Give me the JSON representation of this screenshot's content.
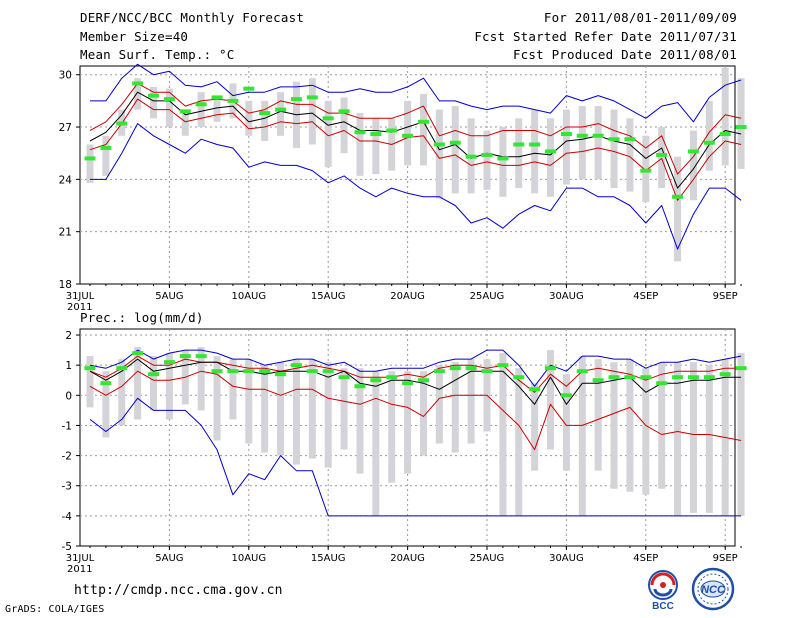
{
  "header": {
    "title": "DERF/NCC/BCC Monthly Forecast",
    "member_size": "Member Size=40",
    "variable": "Mean Surf. Temp.: °C",
    "period": "For 2011/08/01-2011/09/09",
    "started": "Fcst Started Refer Date 2011/07/31",
    "produced": "Fcst Produced Date 2011/08/01"
  },
  "footer": {
    "url": "http://cmdp.ncc.cma.gov.cn",
    "credit": "GrADS: COLA/IGES",
    "logo_left_text": "BCC",
    "logo_right_text": "NCC"
  },
  "chart_data": [
    {
      "type": "line",
      "title": "Mean Surf. Temp.: °C",
      "ylim": [
        18,
        30.5
      ],
      "yticks": [
        18,
        21,
        24,
        27,
        30
      ],
      "x_start_label": "31JUL",
      "x_year_label": "2011",
      "x_tick_labels": [
        "5AUG",
        "10AUG",
        "15AUG",
        "20AUG",
        "25AUG",
        "30AUG",
        "4SEP",
        "9SEP"
      ],
      "series": [
        {
          "name": "ensemble max",
          "color": "#0000cc",
          "values": [
            28.5,
            28.5,
            29.8,
            30.6,
            30.0,
            30.2,
            29.4,
            29.3,
            29.6,
            28.8,
            29.0,
            29.0,
            29.3,
            29.3,
            29.4,
            29.0,
            29.0,
            29.2,
            29.0,
            29.0,
            29.3,
            29.8,
            28.5,
            28.5,
            28.2,
            28.0,
            28.2,
            28.2,
            28.0,
            27.8,
            28.8,
            28.5,
            28.8,
            28.5,
            28.0,
            27.5,
            28.2,
            28.4,
            27.3,
            28.7,
            29.4,
            29.7
          ]
        },
        {
          "name": "upper spread",
          "color": "#cc0000",
          "values": [
            26.8,
            27.3,
            28.3,
            29.5,
            29.0,
            29.0,
            28.2,
            28.5,
            28.6,
            28.5,
            27.8,
            28.0,
            28.5,
            28.3,
            28.3,
            27.8,
            27.8,
            27.5,
            27.5,
            27.5,
            27.8,
            28.2,
            26.5,
            26.8,
            26.5,
            26.5,
            26.8,
            26.8,
            26.8,
            26.5,
            27.0,
            27.0,
            27.2,
            26.8,
            26.5,
            25.8,
            26.5,
            24.3,
            25.3,
            26.7,
            27.7,
            27.5
          ]
        },
        {
          "name": "ensemble mean",
          "color": "#000000",
          "values": [
            26.2,
            26.7,
            27.7,
            29.0,
            28.5,
            28.5,
            27.7,
            27.9,
            28.1,
            28.2,
            27.3,
            27.5,
            27.9,
            27.7,
            27.8,
            27.1,
            27.3,
            26.8,
            26.8,
            26.7,
            27.0,
            27.3,
            25.7,
            26.0,
            25.2,
            25.5,
            25.3,
            25.3,
            25.5,
            25.4,
            26.2,
            26.3,
            26.5,
            26.2,
            26.0,
            25.2,
            25.8,
            23.5,
            24.6,
            26.0,
            26.8,
            26.6
          ]
        },
        {
          "name": "lower spread",
          "color": "#cc0000",
          "values": [
            25.7,
            26.0,
            27.2,
            28.6,
            28.0,
            28.0,
            27.3,
            27.5,
            27.7,
            27.8,
            26.9,
            27.0,
            27.3,
            27.2,
            27.3,
            26.5,
            26.8,
            26.2,
            26.2,
            26.0,
            26.4,
            26.5,
            25.2,
            25.4,
            24.8,
            25.0,
            24.8,
            24.8,
            25.0,
            24.8,
            25.5,
            25.6,
            25.8,
            25.6,
            25.3,
            24.5,
            25.2,
            22.8,
            24.0,
            25.3,
            26.2,
            26.0
          ]
        },
        {
          "name": "ensemble min",
          "color": "#0000cc",
          "values": [
            24.0,
            24.0,
            25.5,
            27.2,
            26.5,
            26.0,
            25.5,
            26.3,
            26.0,
            25.8,
            24.7,
            25.0,
            24.8,
            24.8,
            24.5,
            23.8,
            24.2,
            23.5,
            23.0,
            23.5,
            23.2,
            23.0,
            23.0,
            22.5,
            21.5,
            21.8,
            21.2,
            22.0,
            22.5,
            22.2,
            23.5,
            23.5,
            23.0,
            23.0,
            22.5,
            21.5,
            22.5,
            20.0,
            22.0,
            23.5,
            23.5,
            22.8
          ]
        }
      ],
      "bars": [
        {
          "low": 23.8,
          "high": 26.0
        },
        {
          "low": 24.2,
          "high": 26.5
        },
        {
          "low": 26.5,
          "high": 28.0
        },
        {
          "low": 28.0,
          "high": 29.8
        },
        {
          "low": 27.5,
          "high": 29.3
        },
        {
          "low": 27.0,
          "high": 29.2
        },
        {
          "low": 26.5,
          "high": 28.0
        },
        {
          "low": 27.0,
          "high": 29.0
        },
        {
          "low": 27.3,
          "high": 28.8
        },
        {
          "low": 27.5,
          "high": 29.5
        },
        {
          "low": 26.5,
          "high": 28.5
        },
        {
          "low": 26.2,
          "high": 28.5
        },
        {
          "low": 26.5,
          "high": 29.0
        },
        {
          "low": 25.8,
          "high": 29.6
        },
        {
          "low": 26.0,
          "high": 29.8
        },
        {
          "low": 24.7,
          "high": 28.5
        },
        {
          "low": 25.5,
          "high": 28.7
        },
        {
          "low": 24.2,
          "high": 27.8
        },
        {
          "low": 24.3,
          "high": 27.5
        },
        {
          "low": 24.5,
          "high": 27.5
        },
        {
          "low": 24.8,
          "high": 28.5
        },
        {
          "low": 24.8,
          "high": 28.9
        },
        {
          "low": 22.9,
          "high": 28.0
        },
        {
          "low": 23.2,
          "high": 28.2
        },
        {
          "low": 23.2,
          "high": 27.5
        },
        {
          "low": 23.4,
          "high": 26.8
        },
        {
          "low": 23.0,
          "high": 27.0
        },
        {
          "low": 23.5,
          "high": 27.5
        },
        {
          "low": 23.2,
          "high": 28.0
        },
        {
          "low": 23.0,
          "high": 27.5
        },
        {
          "low": 23.7,
          "high": 28.0
        },
        {
          "low": 24.0,
          "high": 28.2
        },
        {
          "low": 24.0,
          "high": 28.2
        },
        {
          "low": 23.5,
          "high": 28.0
        },
        {
          "low": 23.3,
          "high": 27.5
        },
        {
          "low": 22.7,
          "high": 26.5
        },
        {
          "low": 23.5,
          "high": 27.0
        },
        {
          "low": 19.3,
          "high": 25.3
        },
        {
          "low": 22.8,
          "high": 26.8
        },
        {
          "low": 24.5,
          "high": 28.5
        },
        {
          "low": 24.8,
          "high": 30.4
        },
        {
          "low": 24.6,
          "high": 29.8
        }
      ],
      "green_marks": [
        25.2,
        25.8,
        27.2,
        29.5,
        28.8,
        28.6,
        27.9,
        28.3,
        28.7,
        28.5,
        29.2,
        27.8,
        28.0,
        28.6,
        28.7,
        27.5,
        27.9,
        26.7,
        26.6,
        26.8,
        26.5,
        27.3,
        26.0,
        26.1,
        25.3,
        25.4,
        25.2,
        26.0,
        26.0,
        25.6,
        26.6,
        26.5,
        26.5,
        26.3,
        26.3,
        24.5,
        25.4,
        23.0,
        25.6,
        26.1,
        26.6,
        27.0
      ]
    },
    {
      "type": "line",
      "title": "Prec.: log(mm/d)",
      "ylim": [
        -5,
        2.2
      ],
      "yticks": [
        -5,
        -4,
        -3,
        -2,
        -1,
        0,
        1,
        2
      ],
      "x_start_label": "31JUL",
      "x_year_label": "2011",
      "x_tick_labels": [
        "5AUG",
        "10AUG",
        "15AUG",
        "20AUG",
        "25AUG",
        "30AUG",
        "4SEP",
        "9SEP"
      ],
      "series": [
        {
          "name": "ensemble max",
          "color": "#0000cc",
          "values": [
            1.0,
            0.9,
            1.1,
            1.5,
            1.2,
            1.4,
            1.5,
            1.5,
            1.4,
            1.2,
            1.2,
            1.0,
            1.1,
            1.2,
            1.2,
            1.0,
            1.1,
            0.8,
            0.8,
            0.9,
            0.9,
            0.9,
            1.1,
            1.2,
            1.2,
            1.5,
            1.5,
            1.0,
            0.3,
            1.0,
            0.8,
            1.3,
            1.3,
            1.2,
            1.2,
            0.9,
            1.1,
            1.1,
            1.2,
            1.1,
            1.2,
            1.3
          ]
        },
        {
          "name": "upper spread",
          "color": "#cc0000",
          "values": [
            0.8,
            0.6,
            0.9,
            1.3,
            1.0,
            1.0,
            1.2,
            1.1,
            1.1,
            1.0,
            0.9,
            0.9,
            0.8,
            0.9,
            1.0,
            0.9,
            0.8,
            0.6,
            0.6,
            0.6,
            0.7,
            0.6,
            0.9,
            1.0,
            1.0,
            0.9,
            1.0,
            0.5,
            0.1,
            0.7,
            0.3,
            0.8,
            0.9,
            0.8,
            0.7,
            0.5,
            0.7,
            0.8,
            0.8,
            0.8,
            0.9,
            0.9
          ]
        },
        {
          "name": "ensemble mean",
          "color": "#000000",
          "values": [
            0.8,
            0.5,
            0.8,
            1.2,
            0.8,
            0.9,
            1.0,
            1.1,
            1.1,
            0.8,
            0.8,
            0.7,
            0.8,
            0.8,
            0.8,
            0.6,
            0.8,
            0.4,
            0.3,
            0.5,
            0.5,
            0.4,
            0.2,
            0.5,
            0.8,
            0.8,
            0.8,
            0.3,
            -0.3,
            0.6,
            -0.3,
            0.4,
            0.4,
            0.5,
            0.6,
            0.1,
            0.4,
            0.4,
            0.5,
            0.5,
            0.6,
            0.6
          ]
        },
        {
          "name": "lower spread",
          "color": "#cc0000",
          "values": [
            0.3,
            0.0,
            0.3,
            0.8,
            0.5,
            0.5,
            0.6,
            0.8,
            0.7,
            0.3,
            0.2,
            0.2,
            0.0,
            0.2,
            0.2,
            -0.1,
            -0.2,
            -0.3,
            -0.1,
            -0.3,
            -0.4,
            -0.7,
            -0.1,
            0.0,
            0.0,
            0.0,
            -0.5,
            -1.0,
            -1.8,
            -0.3,
            -1.0,
            -1.0,
            -0.8,
            -0.6,
            -0.4,
            -1.0,
            -1.3,
            -1.2,
            -1.3,
            -1.3,
            -1.4,
            -1.5
          ]
        },
        {
          "name": "ensemble min",
          "color": "#0000cc",
          "values": [
            -0.8,
            -1.2,
            -0.8,
            -0.1,
            -0.5,
            -0.5,
            -0.5,
            -1.0,
            -1.8,
            -3.3,
            -2.6,
            -2.8,
            -2.0,
            -2.5,
            -2.5,
            -4.0,
            -4.0,
            -4.0,
            -4.0,
            -4.0,
            -4.0,
            -4.0,
            -4.0,
            -4.0,
            -4.0,
            -4.0,
            -4.0,
            -4.0,
            -4.0,
            -4.0,
            -4.0,
            -4.0,
            -4.0,
            -4.0,
            -4.0,
            -4.0,
            -4.0,
            -4.0,
            -4.0,
            -4.0,
            -4.0,
            -4.0
          ]
        }
      ],
      "bars": [
        {
          "low": -0.4,
          "high": 1.3
        },
        {
          "low": -1.4,
          "high": 0.8
        },
        {
          "low": -1.0,
          "high": 1.2
        },
        {
          "low": -0.8,
          "high": 1.6
        },
        {
          "low": -0.5,
          "high": 1.3
        },
        {
          "low": -0.8,
          "high": 1.4
        },
        {
          "low": -0.3,
          "high": 1.5
        },
        {
          "low": -0.5,
          "high": 1.6
        },
        {
          "low": -1.5,
          "high": 1.3
        },
        {
          "low": -0.8,
          "high": 1.2
        },
        {
          "low": -1.6,
          "high": 1.2
        },
        {
          "low": -1.9,
          "high": 1.0
        },
        {
          "low": -2.0,
          "high": 1.1
        },
        {
          "low": -2.3,
          "high": 1.2
        },
        {
          "low": -2.1,
          "high": 1.2
        },
        {
          "low": -2.4,
          "high": 1.1
        },
        {
          "low": -1.8,
          "high": 0.9
        },
        {
          "low": -2.6,
          "high": 0.9
        },
        {
          "low": -4.0,
          "high": 0.8
        },
        {
          "low": -2.9,
          "high": 0.8
        },
        {
          "low": -2.6,
          "high": 0.8
        },
        {
          "low": -2.0,
          "high": 0.8
        },
        {
          "low": -1.6,
          "high": 1.0
        },
        {
          "low": -1.9,
          "high": 1.1
        },
        {
          "low": -1.6,
          "high": 1.2
        },
        {
          "low": -1.2,
          "high": 1.2
        },
        {
          "low": -4.0,
          "high": 1.4
        },
        {
          "low": -4.0,
          "high": 0.9
        },
        {
          "low": -2.5,
          "high": 0.4
        },
        {
          "low": -1.8,
          "high": 1.5
        },
        {
          "low": -2.5,
          "high": 0.7
        },
        {
          "low": -4.0,
          "high": 1.3
        },
        {
          "low": -2.5,
          "high": 1.2
        },
        {
          "low": -3.1,
          "high": 1.1
        },
        {
          "low": -3.2,
          "high": 1.2
        },
        {
          "low": -3.3,
          "high": 0.9
        },
        {
          "low": -3.1,
          "high": 1.1
        },
        {
          "low": -4.0,
          "high": 1.1
        },
        {
          "low": -3.9,
          "high": 1.1
        },
        {
          "low": -3.9,
          "high": 1.0
        },
        {
          "low": -4.0,
          "high": 1.2
        },
        {
          "low": -4.0,
          "high": 1.4
        }
      ],
      "green_marks": [
        0.9,
        0.4,
        0.9,
        1.4,
        0.7,
        1.1,
        1.3,
        1.3,
        0.8,
        0.8,
        0.8,
        0.8,
        0.7,
        1.0,
        0.8,
        0.8,
        0.6,
        0.3,
        0.5,
        0.6,
        0.4,
        0.5,
        0.8,
        0.9,
        0.9,
        0.8,
        1.0,
        0.6,
        0.2,
        0.9,
        0.0,
        0.8,
        0.5,
        0.6,
        0.6,
        0.6,
        0.4,
        0.6,
        0.6,
        0.6,
        0.7,
        0.9
      ]
    }
  ]
}
